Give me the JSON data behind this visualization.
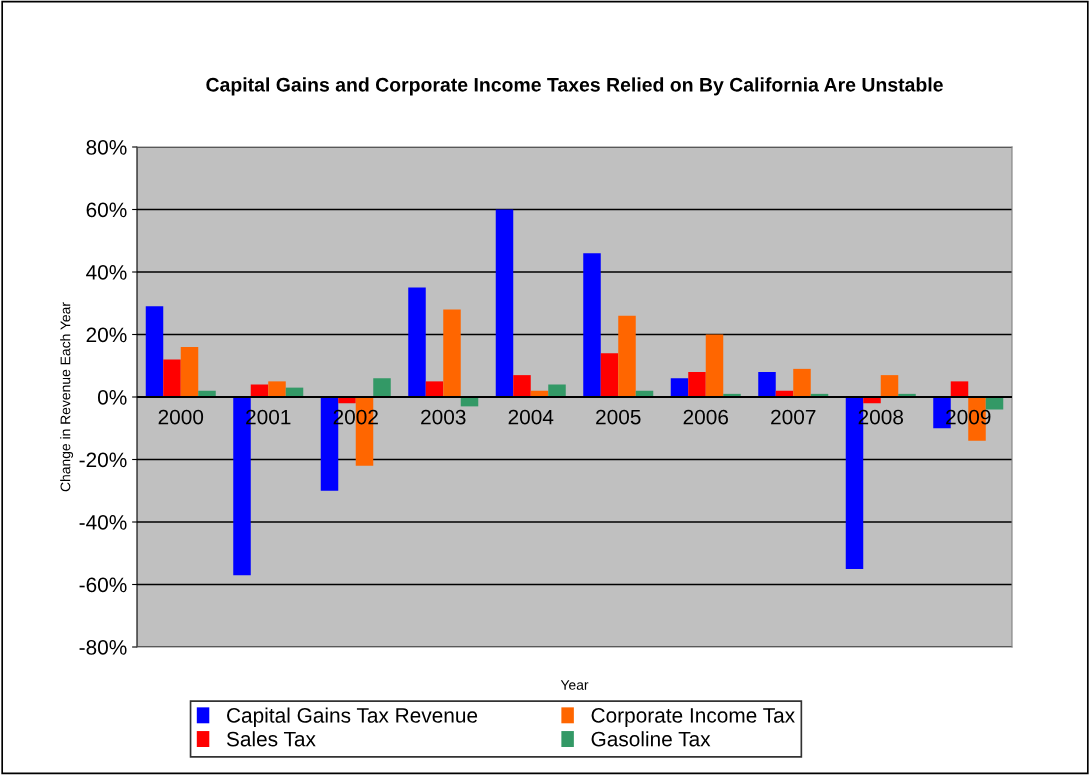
{
  "chart_data": {
    "type": "bar",
    "title": "Capital Gains and Corporate Income Taxes Relied on By California Are Unstable",
    "xlabel": "Year",
    "ylabel": "Change in Revenue Each Year",
    "categories": [
      "2000",
      "2001",
      "2002",
      "2003",
      "2004",
      "2005",
      "2006",
      "2007",
      "2008",
      "2009"
    ],
    "series": [
      {
        "name": "Capital Gains Tax Revenue",
        "color": "#0000ff",
        "values": [
          29,
          -57,
          -30,
          35,
          60,
          46,
          6,
          8,
          -55,
          -10
        ]
      },
      {
        "name": "Sales Tax",
        "color": "#ff0000",
        "values": [
          12,
          4,
          -2,
          5,
          7,
          14,
          8,
          2,
          -2,
          5
        ]
      },
      {
        "name": "Corporate Income Tax",
        "color": "#ff6600",
        "values": [
          16,
          5,
          -22,
          28,
          2,
          26,
          20,
          9,
          7,
          -14
        ]
      },
      {
        "name": "Gasoline Tax",
        "color": "#339966",
        "values": [
          2,
          3,
          6,
          -3,
          4,
          2,
          1,
          1,
          1,
          -4
        ]
      }
    ],
    "ylim": [
      -80,
      80
    ],
    "yticks": [
      {
        "value": -80,
        "label": "-80%"
      },
      {
        "value": -60,
        "label": "-60%"
      },
      {
        "value": -40,
        "label": "-40%"
      },
      {
        "value": -20,
        "label": "-20%"
      },
      {
        "value": 0,
        "label": "0%"
      },
      {
        "value": 20,
        "label": "20%"
      },
      {
        "value": 40,
        "label": "40%"
      },
      {
        "value": 60,
        "label": "60%"
      },
      {
        "value": 80,
        "label": "80%"
      }
    ],
    "grid": "y",
    "legend": "bottom"
  }
}
